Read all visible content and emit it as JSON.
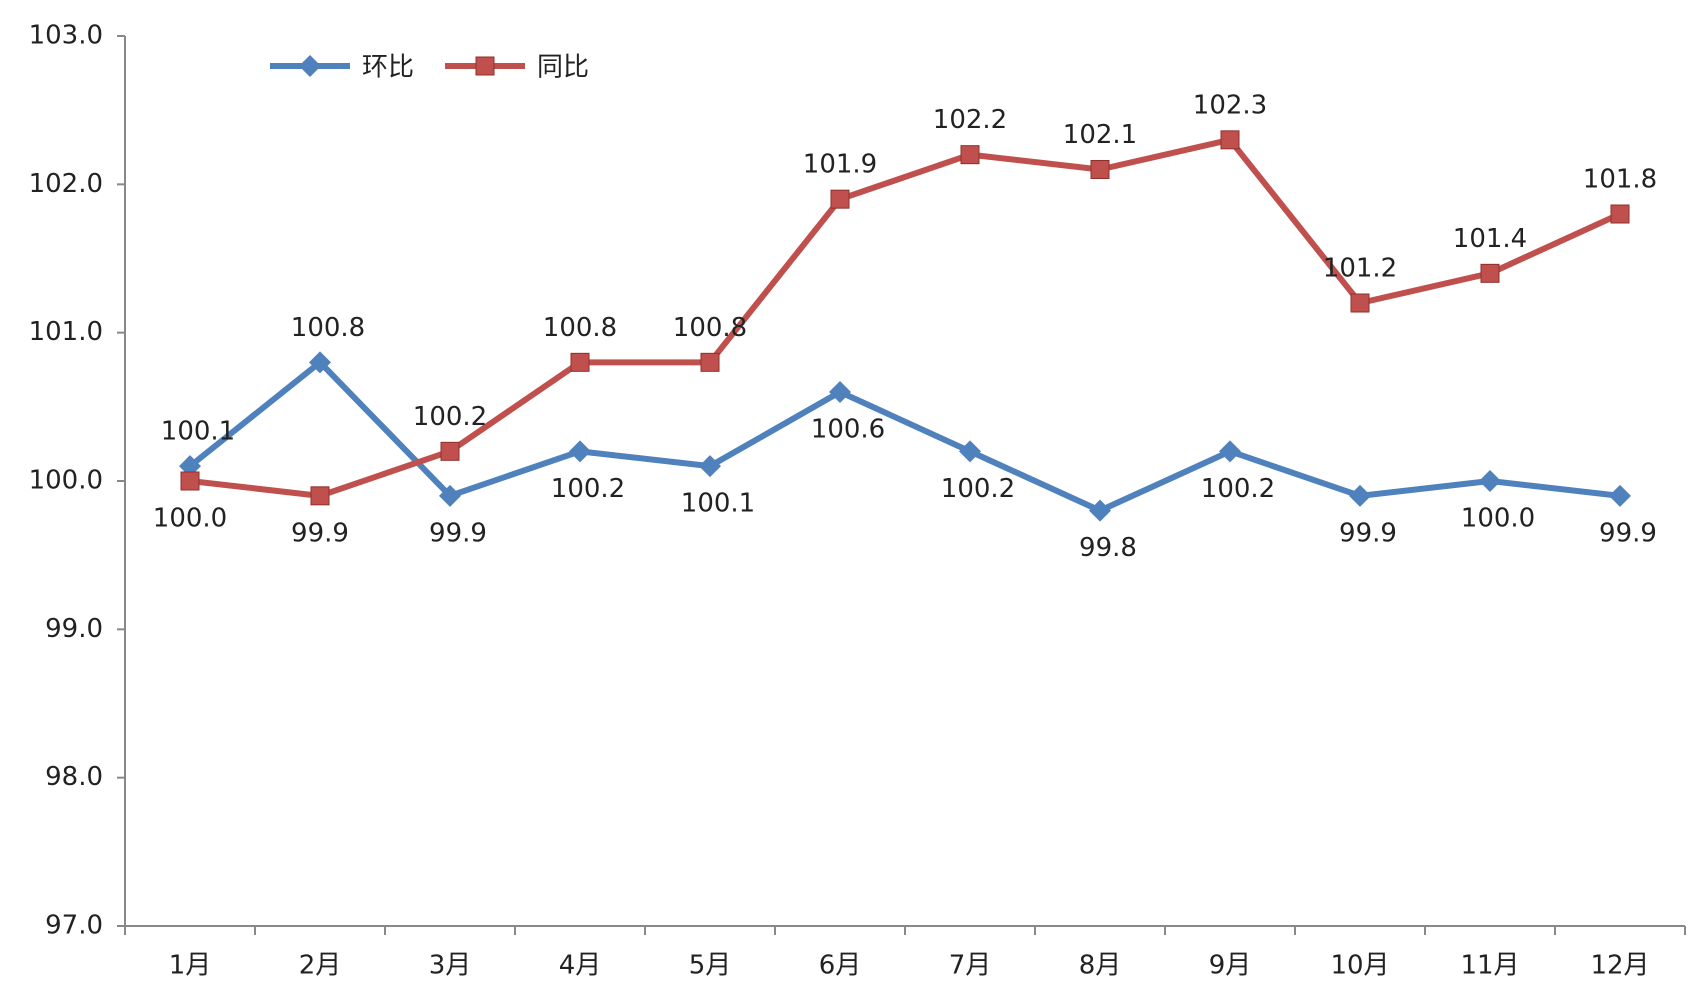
{
  "chart_data": {
    "type": "line",
    "categories": [
      "1月",
      "2月",
      "3月",
      "4月",
      "5月",
      "6月",
      "7月",
      "8月",
      "9月",
      "10月",
      "11月",
      "12月"
    ],
    "series": [
      {
        "name": "环比",
        "color": "#4f81bd",
        "marker": "diamond",
        "values": [
          100.1,
          100.8,
          99.9,
          100.2,
          100.1,
          100.6,
          100.2,
          99.8,
          100.2,
          99.9,
          100,
          99.9
        ],
        "value_labels": [
          "100.1",
          "100.8",
          "99.9",
          "100.2",
          "100.1",
          "100.6",
          "100.2",
          "99.8",
          "100.2",
          "99.9",
          "100.0",
          "99.9"
        ]
      },
      {
        "name": "同比",
        "color": "#c0504d",
        "marker": "square",
        "values": [
          100,
          99.9,
          100.2,
          100.8,
          100.8,
          101.9,
          102.2,
          102.1,
          102.3,
          101.2,
          101.4,
          101.8
        ],
        "value_labels": [
          "100.0",
          "99.9",
          "100.2",
          "100.8",
          "100.8",
          "101.9",
          "102.2",
          "102.1",
          "102.3",
          "101.2",
          "101.4",
          "101.8"
        ]
      }
    ],
    "ylim": [
      97,
      103
    ],
    "yticks": [
      {
        "value": 97,
        "label": "97.0"
      },
      {
        "value": 98,
        "label": "98.0"
      },
      {
        "value": 99,
        "label": "99.0"
      },
      {
        "value": 100,
        "label": "100.0"
      },
      {
        "value": 101,
        "label": "101.0"
      },
      {
        "value": 102,
        "label": "102.0"
      },
      {
        "value": 103,
        "label": "103.0"
      }
    ],
    "legend": "top-left"
  }
}
